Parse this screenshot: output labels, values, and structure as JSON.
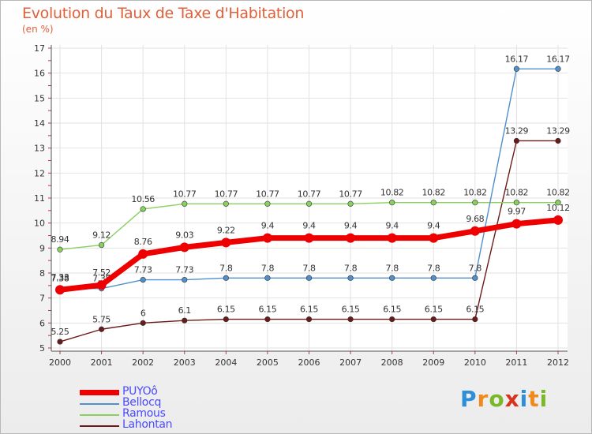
{
  "title": "Evolution du Taux de Taxe d'Habitation",
  "unit": "(en %)",
  "logo": {
    "text": "Proxiti",
    "colors": [
      "#2e8fd8",
      "#f08a1c",
      "#7bb829",
      "#d6341c",
      "#2e8fd8",
      "#f08a1c",
      "#7bb829"
    ]
  },
  "chart_data": {
    "type": "line",
    "x": [
      "2000",
      "2001",
      "2002",
      "2003",
      "2004",
      "2005",
      "2006",
      "2007",
      "2008",
      "2009",
      "2010",
      "2011",
      "2012"
    ],
    "ylim": [
      5,
      17
    ],
    "yticks": [
      "5",
      "6",
      "7",
      "8",
      "9",
      "10",
      "11",
      "12",
      "13",
      "14",
      "15",
      "16",
      "17"
    ],
    "grid": true,
    "legend_position": "bottom-left",
    "series": [
      {
        "name": "Lahontan",
        "color": "#6b1a1a",
        "values": [
          5.25,
          5.75,
          6,
          6.1,
          6.15,
          6.15,
          6.15,
          6.15,
          6.15,
          6.15,
          6.15,
          13.29,
          13.29
        ],
        "labels": [
          "5.25",
          "5.75",
          "6",
          "6.1",
          "6.15",
          "6.15",
          "6.15",
          "6.15",
          "6.15",
          "6.15",
          "6.15",
          "13.29",
          "13.29"
        ]
      },
      {
        "name": "Ramous",
        "color": "#88d060",
        "values": [
          8.94,
          9.12,
          10.56,
          10.77,
          10.77,
          10.77,
          10.77,
          10.77,
          10.82,
          10.82,
          10.82,
          10.82,
          10.82
        ],
        "labels": [
          "8.94",
          "9.12",
          "10.56",
          "10.77",
          "10.77",
          "10.77",
          "10.77",
          "10.77",
          "10.82",
          "10.82",
          "10.82",
          "10.82",
          "10.82"
        ]
      },
      {
        "name": "Bellocq",
        "color": "#5090cc",
        "values": [
          7.38,
          7.38,
          7.73,
          7.73,
          7.8,
          7.8,
          7.8,
          7.8,
          7.8,
          7.8,
          7.8,
          16.17,
          16.17
        ],
        "labels": [
          "7.38",
          "7.38",
          "7.73",
          "7.73",
          "7.8",
          "7.8",
          "7.8",
          "7.8",
          "7.8",
          "7.8",
          "7.8",
          "16.17",
          "16.17"
        ]
      },
      {
        "name": "PUYOô",
        "color": "#ee0000",
        "values": [
          7.33,
          7.52,
          8.76,
          9.03,
          9.22,
          9.4,
          9.4,
          9.4,
          9.4,
          9.4,
          9.68,
          9.97,
          10.12
        ],
        "labels": [
          "7.33",
          "7.52",
          "8.76",
          "9.03",
          "9.22",
          "9.4",
          "9.4",
          "9.4",
          "9.4",
          "9.4",
          "9.68",
          "9.97",
          "10.12"
        ]
      }
    ],
    "legend_order": [
      "PUYOô",
      "Bellocq",
      "Ramous",
      "Lahontan"
    ]
  }
}
